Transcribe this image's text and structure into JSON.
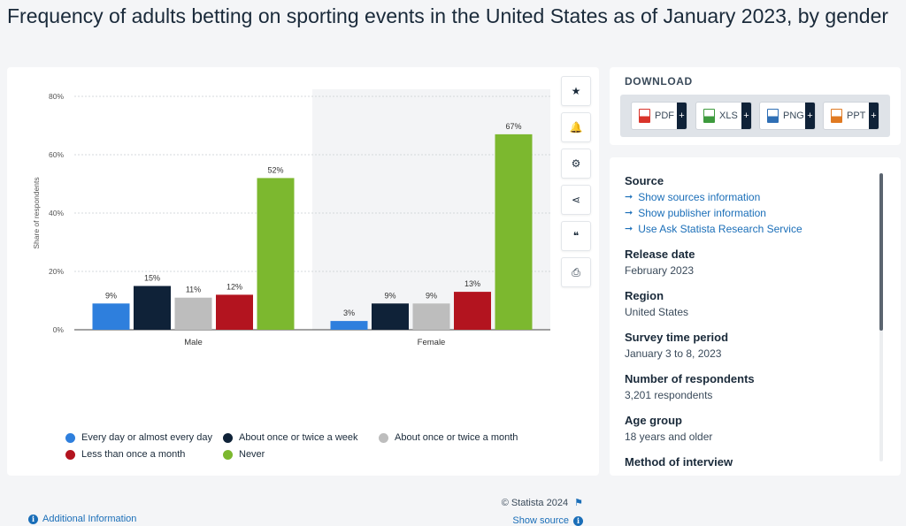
{
  "page_title": "Frequency of adults betting on sporting events in the United States as of January 2023, by gender",
  "toolbar": {
    "icons": [
      "star-icon",
      "bell-icon",
      "gear-icon",
      "share-icon",
      "quote-icon",
      "print-icon"
    ],
    "glyphs": [
      "★",
      "🔔",
      "⚙",
      "⋖",
      "❝",
      "⎙"
    ]
  },
  "chart_data": {
    "type": "bar",
    "categories": [
      "Male",
      "Female"
    ],
    "series": [
      {
        "name": "Every day or almost every day",
        "color": "#2e7fdd",
        "values": [
          9,
          3
        ]
      },
      {
        "name": "About once or twice a week",
        "color": "#0f2238",
        "values": [
          15,
          9
        ]
      },
      {
        "name": "About once or twice a month",
        "color": "#bdbdbd",
        "values": [
          11,
          9
        ]
      },
      {
        "name": "Less than once a month",
        "color": "#b3141f",
        "values": [
          12,
          13
        ]
      },
      {
        "name": "Never",
        "color": "#7cb82f",
        "values": [
          52,
          67
        ]
      }
    ],
    "ylabel": "Share of respondents",
    "ylim": [
      0,
      80
    ],
    "yticks": [
      "0%",
      "20%",
      "40%",
      "60%",
      "80%"
    ],
    "value_suffix": "%",
    "grid": true,
    "legend_position": "bottom"
  },
  "footer": {
    "credit": "© Statista 2024",
    "additional_info": "Additional Information",
    "show_source": "Show source"
  },
  "download": {
    "title": "DOWNLOAD",
    "buttons": [
      {
        "label": "PDF",
        "color": "#d9342b"
      },
      {
        "label": "XLS",
        "color": "#3d9a3d"
      },
      {
        "label": "PNG",
        "color": "#2f6fb5"
      },
      {
        "label": "PPT",
        "color": "#e07a22"
      }
    ]
  },
  "info": {
    "source_label": "Source",
    "source_links": [
      "Show sources information",
      "Show publisher information",
      "Use Ask Statista Research Service"
    ],
    "release_date_label": "Release date",
    "release_date": "February 2023",
    "region_label": "Region",
    "region": "United States",
    "survey_period_label": "Survey time period",
    "survey_period": "January 3 to 8, 2023",
    "respondents_label": "Number of respondents",
    "respondents": "3,201 respondents",
    "age_group_label": "Age group",
    "age_group": "18 years and older",
    "method_label": "Method of interview"
  }
}
